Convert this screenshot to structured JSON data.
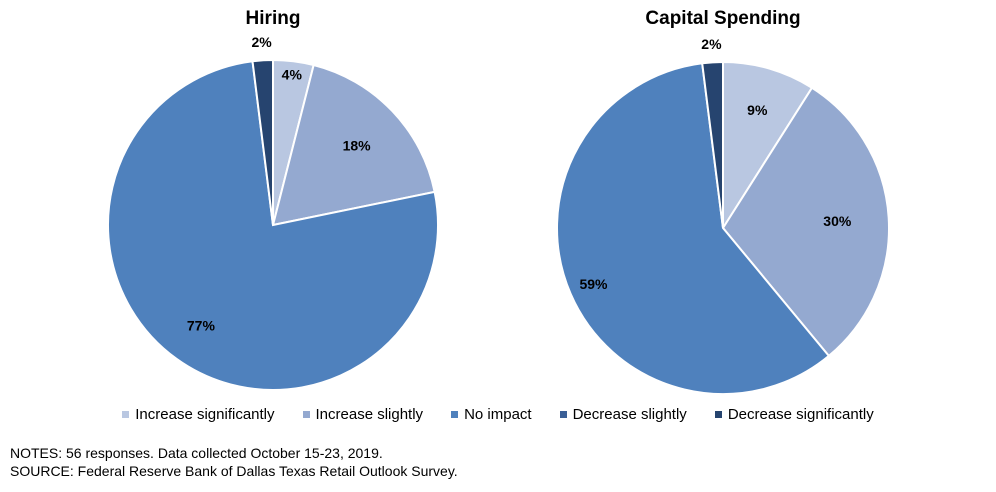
{
  "chart_data": [
    {
      "type": "pie",
      "title": "Hiring",
      "categories": [
        "Increase significantly",
        "Increase slightly",
        "No impact",
        "Decrease slightly",
        "Decrease significantly"
      ],
      "values": [
        4,
        18,
        77,
        0,
        2
      ],
      "labels": [
        "4%",
        "18%",
        "77%",
        "",
        "2%"
      ]
    },
    {
      "type": "pie",
      "title": "Capital Spending",
      "categories": [
        "Increase significantly",
        "Increase slightly",
        "No impact",
        "Decrease slightly",
        "Decrease significantly"
      ],
      "values": [
        9,
        30,
        59,
        0,
        2
      ],
      "labels": [
        "9%",
        "30%",
        "59%",
        "",
        "2%"
      ]
    }
  ],
  "legend": {
    "position": "bottom",
    "items": [
      {
        "label": "Increase significantly",
        "color": "#b9c7e1"
      },
      {
        "label": "Increase slightly",
        "color": "#94a9d0"
      },
      {
        "label": "No impact",
        "color": "#4f81bd"
      },
      {
        "label": "Decrease slightly",
        "color": "#3a5f96"
      },
      {
        "label": "Decrease significantly",
        "color": "#26446f"
      }
    ]
  },
  "notes": {
    "line1": "NOTES: 56 responses. Data collected October 15-23, 2019.",
    "line2": "SOURCE: Federal Reserve Bank of Dallas Texas Retail Outlook Survey."
  }
}
